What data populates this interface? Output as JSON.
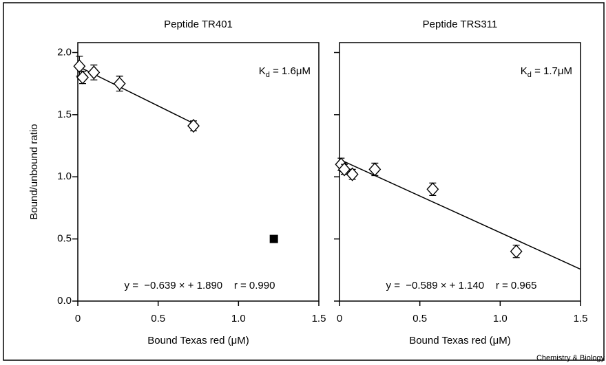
{
  "chart_data": [
    {
      "type": "scatter",
      "title": "Peptide TR401",
      "xlabel": "Bound Texas red (μM)",
      "ylabel": "Bound/unbound ratio",
      "kd": {
        "symbol": "K",
        "sub": "d",
        "text": " = 1.6μM"
      },
      "equation": "y =  −0.639 × + 1.890    r = 0.990",
      "xlim": [
        0,
        1.5
      ],
      "ylim": [
        0,
        2.08
      ],
      "xticks": [
        0,
        0.5,
        {
          "value": 1.0,
          "label": "1.0"
        },
        1.5
      ],
      "yticks": [
        {
          "value": 0,
          "label": "0.0"
        },
        0.5,
        {
          "value": 1.0,
          "label": "1.0"
        },
        1.5,
        {
          "value": 2.0,
          "label": "2.0"
        }
      ],
      "show_ytick_labels": true,
      "series": [
        {
          "marker": "diamond",
          "color": "#000000",
          "x": [
            0.01,
            0.03,
            0.1,
            0.26,
            0.72
          ],
          "values": [
            1.89,
            1.8,
            1.84,
            1.75,
            1.41
          ],
          "errors": [
            0.08,
            0.05,
            0.06,
            0.06,
            0.04
          ]
        },
        {
          "marker": "square",
          "color": "#000000",
          "x": [
            1.22
          ],
          "values": [
            0.5
          ]
        }
      ],
      "fit": {
        "slope": -0.639,
        "intercept": 1.89,
        "x_range": [
          0,
          0.72
        ]
      }
    },
    {
      "type": "scatter",
      "title": "Peptide TRS311",
      "xlabel": "Bound Texas red (μM)",
      "kd": {
        "symbol": "K",
        "sub": "d",
        "text": " = 1.7μM"
      },
      "equation": "y =  −0.589 × + 1.140    r = 0.965",
      "xlim": [
        0,
        1.5
      ],
      "ylim": [
        0,
        2.08
      ],
      "xticks": [
        0,
        0.5,
        {
          "value": 1.0,
          "label": "1.0"
        },
        1.5
      ],
      "yticks": [
        0,
        0.5,
        1.0,
        1.5,
        2.0
      ],
      "show_ytick_labels": false,
      "series": [
        {
          "marker": "diamond",
          "color": "#000000",
          "x": [
            0.01,
            0.03,
            0.08,
            0.22,
            0.58,
            1.1
          ],
          "values": [
            1.1,
            1.06,
            1.02,
            1.06,
            0.9,
            0.4
          ],
          "errors": [
            0.05,
            0.04,
            0.04,
            0.05,
            0.05,
            0.05
          ]
        }
      ],
      "fit": {
        "slope": -0.589,
        "intercept": 1.14,
        "x_range": [
          0,
          1.5
        ]
      }
    }
  ],
  "footer": "Chemistry & Biology"
}
